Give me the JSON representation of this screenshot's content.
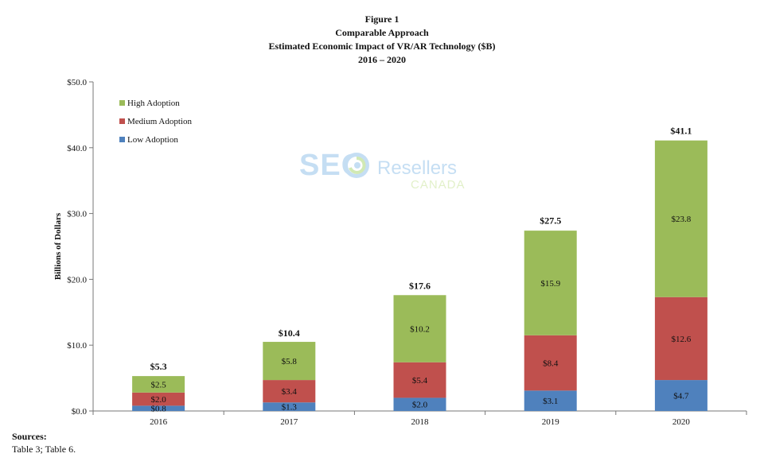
{
  "figure": {
    "title_line1": "Figure 1",
    "title_line2": "Comparable Approach",
    "title_line3": "Estimated Economic Impact of VR/AR Technology ($B)",
    "title_line4": "2016 – 2020"
  },
  "watermark": {
    "brand": "SEO",
    "name": "Resellers",
    "country": "CANADA"
  },
  "sources": {
    "heading": "Sources:",
    "text": "Table 3; Table 6."
  },
  "colors": {
    "low": "#4f81bd",
    "medium": "#c0504d",
    "high": "#9bbb59"
  },
  "chart_data": {
    "type": "bar",
    "stacked": true,
    "categories": [
      "2016",
      "2017",
      "2018",
      "2019",
      "2020"
    ],
    "series": [
      {
        "name": "Low Adoption",
        "values": [
          0.8,
          1.3,
          2.0,
          3.1,
          4.7
        ],
        "labels": [
          "$0.8",
          "$1.3",
          "$2.0",
          "$3.1",
          "$4.7"
        ],
        "color": "#4f81bd"
      },
      {
        "name": "Medium Adoption",
        "values": [
          2.0,
          3.4,
          5.4,
          8.4,
          12.6
        ],
        "labels": [
          "$2.0",
          "$3.4",
          "$5.4",
          "$8.4",
          "$12.6"
        ],
        "color": "#c0504d"
      },
      {
        "name": "High Adoption",
        "values": [
          2.5,
          5.8,
          10.2,
          15.9,
          23.8
        ],
        "labels": [
          "$2.5",
          "$5.8",
          "$10.2",
          "$15.9",
          "$23.8"
        ],
        "color": "#9bbb59"
      }
    ],
    "totals": [
      5.3,
      10.4,
      17.6,
      27.5,
      41.1
    ],
    "total_labels": [
      "$5.3",
      "$10.4",
      "$17.6",
      "$27.5",
      "$41.1"
    ],
    "ylabel": "Billions of Dollars",
    "xlabel": "",
    "ylim": [
      0,
      50
    ],
    "yticks": [
      0,
      10,
      20,
      30,
      40,
      50
    ],
    "ytick_labels": [
      "$0.0",
      "$10.0",
      "$20.0",
      "$30.0",
      "$40.0",
      "$50.0"
    ],
    "grid": false,
    "legend_position": "top-left",
    "legend_order": [
      "High Adoption",
      "Medium Adoption",
      "Low Adoption"
    ]
  }
}
